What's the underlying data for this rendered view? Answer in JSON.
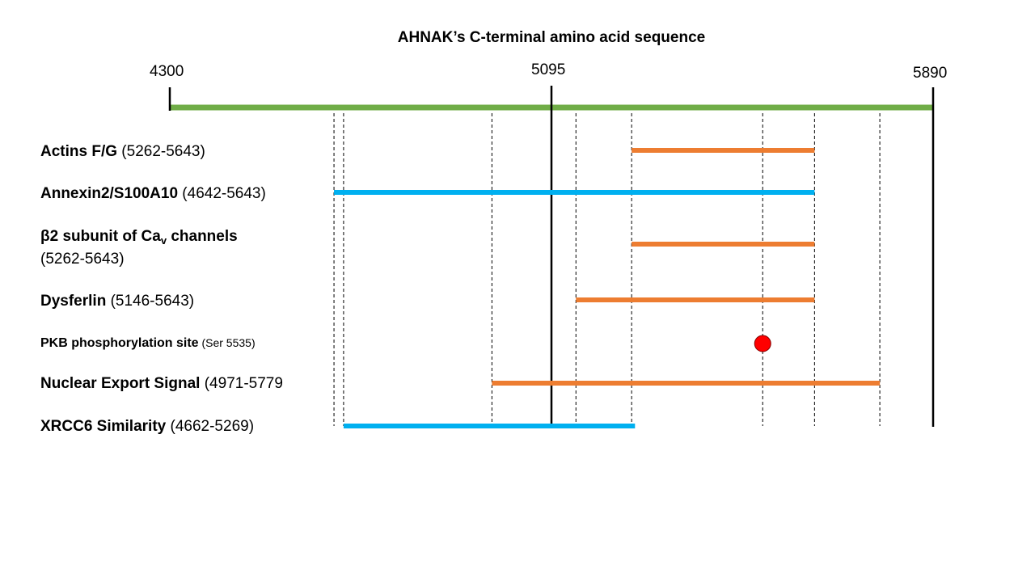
{
  "title": "AHNAK’s C-terminal amino acid sequence",
  "axis": {
    "start": 4300,
    "end": 5890,
    "ticks": [
      {
        "value": 4300,
        "label": "4300"
      },
      {
        "value": 5095,
        "label": "5095"
      },
      {
        "value": 5890,
        "label": "5890"
      }
    ],
    "color": "#70ad47"
  },
  "colors": {
    "orange": "#ed7d31",
    "blue": "#00b0f0",
    "site": "#ff0000"
  },
  "rows": [
    {
      "name": "Actins F/G",
      "range_text": " (5262-5643)",
      "start": 5262,
      "end": 5643,
      "color": "#ed7d31",
      "type": "bar"
    },
    {
      "name": "Annexin2/S100A10",
      "range_text": " (4642-5643)",
      "start": 4642,
      "end": 5643,
      "color": "#00b0f0",
      "type": "bar"
    },
    {
      "name_pre": "β2 subunit of Ca",
      "name_sub": "v",
      "name_post": " channels",
      "range_text": "(5262-5643)",
      "start": 5262,
      "end": 5643,
      "color": "#ed7d31",
      "type": "bar"
    },
    {
      "name": "Dysferlin",
      "range_text": " (5146-5643)",
      "start": 5146,
      "end": 5643,
      "color": "#ed7d31",
      "type": "bar"
    },
    {
      "name": "PKB phosphorylation  site",
      "range_text": " (Ser 5535)",
      "position": 5535,
      "color": "#ff0000",
      "type": "point"
    },
    {
      "name": "Nuclear Export Signal",
      "range_text": " (4971-5779",
      "start": 4971,
      "end": 5779,
      "color": "#ed7d31",
      "type": "bar"
    },
    {
      "name": "XRCC6 Similarity",
      "range_text": " (4662-5269)",
      "start": 4662,
      "end": 5269,
      "color": "#00b0f0",
      "type": "bar"
    }
  ],
  "guide_positions": [
    4642,
    4662,
    4971,
    5146,
    5262,
    5535,
    5643,
    5779
  ]
}
